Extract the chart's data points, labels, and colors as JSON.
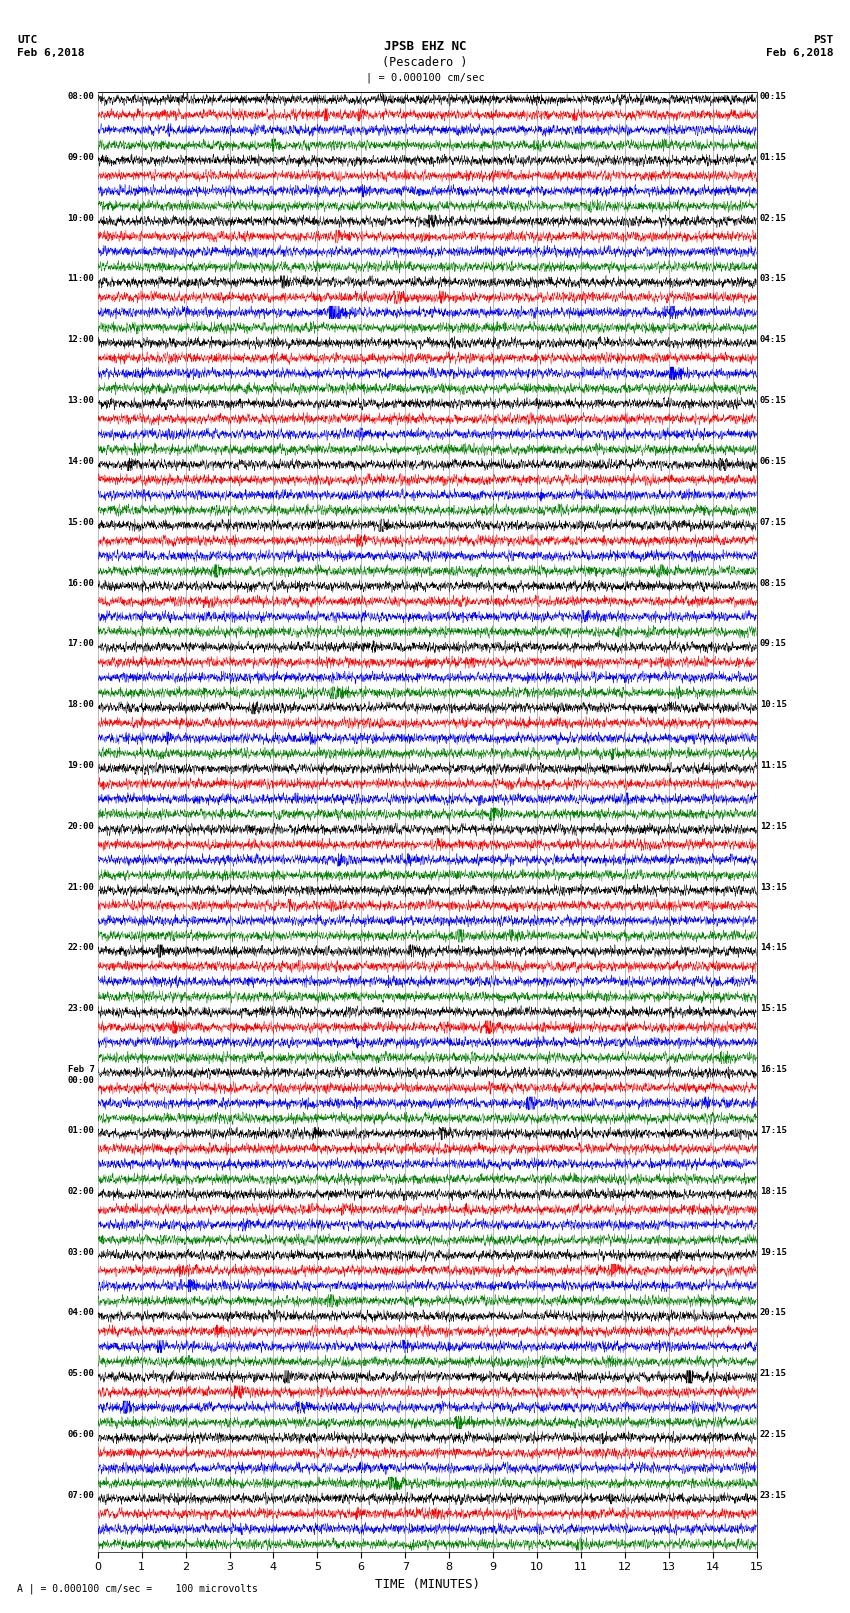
{
  "title_line1": "JPSB EHZ NC",
  "title_line2": "(Pescadero )",
  "scale_label": "| = 0.000100 cm/sec",
  "left_date_label": "UTC\nFeb 6,2018",
  "right_date_label": "PST\nFeb 6,2018",
  "xlabel": "TIME (MINUTES)",
  "footer_label": "A | = 0.000100 cm/sec =    100 microvolts",
  "left_times": [
    "08:00",
    "09:00",
    "10:00",
    "11:00",
    "12:00",
    "13:00",
    "14:00",
    "15:00",
    "16:00",
    "17:00",
    "18:00",
    "19:00",
    "20:00",
    "21:00",
    "22:00",
    "23:00",
    "Feb 7\n00:00",
    "01:00",
    "02:00",
    "03:00",
    "04:00",
    "05:00",
    "06:00",
    "07:00"
  ],
  "right_times": [
    "00:15",
    "01:15",
    "02:15",
    "03:15",
    "04:15",
    "05:15",
    "06:15",
    "07:15",
    "08:15",
    "09:15",
    "10:15",
    "11:15",
    "12:15",
    "13:15",
    "14:15",
    "15:15",
    "16:15",
    "17:15",
    "18:15",
    "19:15",
    "20:15",
    "21:15",
    "22:15",
    "23:15"
  ],
  "colors": [
    "black",
    "red",
    "blue",
    "green"
  ],
  "n_hours": 24,
  "traces_per_hour": 4,
  "minutes": 15,
  "bg_color": "white",
  "fig_width": 8.5,
  "fig_height": 16.13,
  "dpi": 100,
  "xlim": [
    0,
    15
  ],
  "xticks": [
    0,
    1,
    2,
    3,
    4,
    5,
    6,
    7,
    8,
    9,
    10,
    11,
    12,
    13,
    14,
    15
  ],
  "base_noise_amp": 0.35,
  "event_lam": 1.5
}
